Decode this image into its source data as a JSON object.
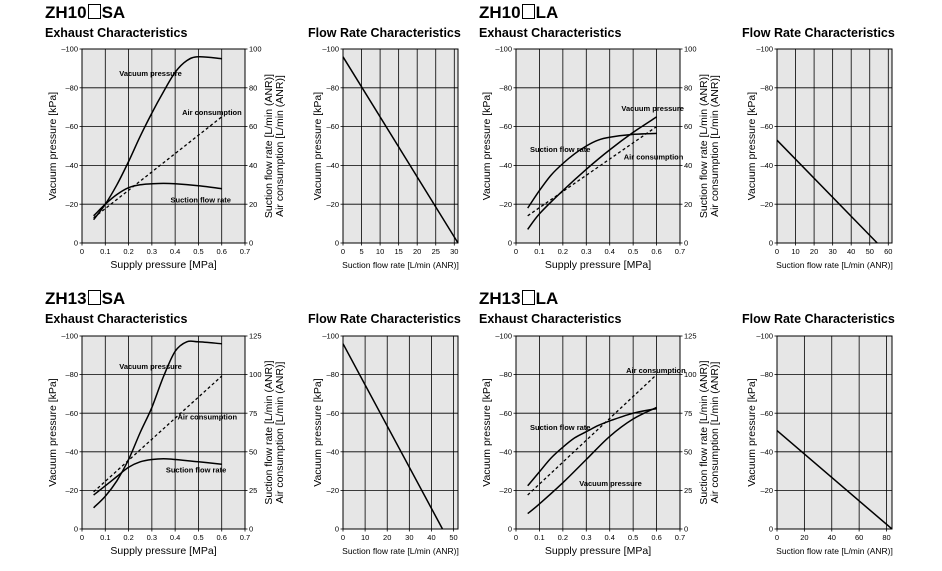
{
  "models": [
    {
      "prefix": "ZH10",
      "suffix": "SA"
    },
    {
      "prefix": "ZH10",
      "suffix": "LA"
    },
    {
      "prefix": "ZH13",
      "suffix": "SA"
    },
    {
      "prefix": "ZH13",
      "suffix": "LA"
    }
  ],
  "titles": {
    "exhaust": "Exhaust Characteristics",
    "flow": "Flow Rate Characteristics"
  },
  "chart_data": [
    {
      "id": "zh10sa-exhaust",
      "type": "line",
      "title": "Exhaust Characteristics",
      "xlabel": "Supply pressure [MPa]",
      "ylabel": "Vacuum pressure [kPa]",
      "y2label": [
        "Suction flow rate [L/min (ANR)]",
        "Air consumption [L/min (ANR)]"
      ],
      "xlim": [
        0,
        0.7
      ],
      "ylim": [
        0,
        -100
      ],
      "y2lim": [
        0,
        100
      ],
      "xticks": [
        0,
        0.1,
        0.2,
        0.3,
        0.4,
        0.5,
        0.6,
        0.7
      ],
      "xtick_labels": [
        "0",
        "0.1",
        "0.2",
        "0.3",
        "0.4",
        "0.5",
        "0.6",
        "0.7"
      ],
      "yticks": [
        0,
        -20,
        -40,
        -60,
        -80,
        -100
      ],
      "ytick_labels": [
        "0",
        "–20",
        "–40",
        "–60",
        "–80",
        "–100"
      ],
      "y2ticks": [
        0,
        20,
        40,
        60,
        80,
        100
      ],
      "y2tick_labels": [
        "0",
        "20",
        "40",
        "60",
        "80",
        "100"
      ],
      "grid": true,
      "series": [
        {
          "name": "Vacuum pressure",
          "axis": "left",
          "style": "solid",
          "x": [
            0.05,
            0.1,
            0.15,
            0.2,
            0.25,
            0.3,
            0.35,
            0.4,
            0.45,
            0.5,
            0.6
          ],
          "y": [
            -12,
            -20,
            -30,
            -42,
            -55,
            -67,
            -78,
            -88,
            -94,
            -96,
            -95
          ]
        },
        {
          "name": "Air consumption",
          "axis": "right",
          "style": "dashed",
          "x": [
            0.05,
            0.6
          ],
          "y": [
            13,
            65
          ]
        },
        {
          "name": "Suction flow rate",
          "axis": "right",
          "style": "solid",
          "x": [
            0.05,
            0.1,
            0.15,
            0.2,
            0.25,
            0.3,
            0.35,
            0.4,
            0.5,
            0.6
          ],
          "y": [
            14,
            20,
            25,
            28.5,
            30,
            30.5,
            30.7,
            30.5,
            29.5,
            28
          ]
        }
      ],
      "annotations": [
        {
          "text": "Vacuum pressure",
          "x": 0.16,
          "y": -86,
          "axis": "left"
        },
        {
          "text": "Air consumption",
          "x": 0.43,
          "y": 66,
          "axis": "right"
        },
        {
          "text": "Suction flow rate",
          "x": 0.38,
          "y": 21,
          "axis": "right"
        }
      ]
    },
    {
      "id": "zh10sa-flow",
      "type": "line",
      "title": "Flow Rate Characteristics",
      "xlabel": "Suction flow rate [L/min (ANR)]",
      "ylabel": "Vacuum pressure [kPa]",
      "xlim": [
        0,
        31
      ],
      "ylim": [
        0,
        -100
      ],
      "xticks": [
        0,
        5,
        10,
        15,
        20,
        25,
        30
      ],
      "xtick_labels": [
        "0",
        "5",
        "10",
        "15",
        "20",
        "25",
        "30"
      ],
      "yticks": [
        0,
        -20,
        -40,
        -60,
        -80,
        -100
      ],
      "ytick_labels": [
        "0",
        "–20",
        "–40",
        "–60",
        "–80",
        "–100"
      ],
      "grid": true,
      "series": [
        {
          "axis": "left",
          "style": "solid",
          "x": [
            0,
            31
          ],
          "y": [
            -96,
            0
          ]
        }
      ]
    },
    {
      "id": "zh10la-exhaust",
      "type": "line",
      "title": "Exhaust Characteristics",
      "xlabel": "Supply pressure [MPa]",
      "ylabel": "Vacuum pressure [kPa]",
      "y2label": [
        "Suction flow rate [L/min (ANR)]",
        "Air consumption [L/min (ANR)]"
      ],
      "xlim": [
        0,
        0.7
      ],
      "ylim": [
        0,
        -100
      ],
      "y2lim": [
        0,
        100
      ],
      "xticks": [
        0,
        0.1,
        0.2,
        0.3,
        0.4,
        0.5,
        0.6,
        0.7
      ],
      "xtick_labels": [
        "0",
        "0.1",
        "0.2",
        "0.3",
        "0.4",
        "0.5",
        "0.6",
        "0.7"
      ],
      "yticks": [
        0,
        -20,
        -40,
        -60,
        -80,
        -100
      ],
      "ytick_labels": [
        "0",
        "–20",
        "–40",
        "–60",
        "–80",
        "–100"
      ],
      "y2ticks": [
        0,
        20,
        40,
        60,
        80,
        100
      ],
      "y2tick_labels": [
        "0",
        "20",
        "40",
        "60",
        "80",
        "100"
      ],
      "grid": true,
      "series": [
        {
          "name": "Vacuum pressure",
          "axis": "left",
          "style": "solid",
          "x": [
            0.05,
            0.1,
            0.2,
            0.3,
            0.4,
            0.5,
            0.6
          ],
          "y": [
            -7,
            -15,
            -27,
            -38,
            -48,
            -57,
            -65
          ]
        },
        {
          "name": "Air consumption",
          "axis": "right",
          "style": "dashed",
          "x": [
            0.05,
            0.6
          ],
          "y": [
            14,
            60
          ]
        },
        {
          "name": "Suction flow rate",
          "axis": "right",
          "style": "solid",
          "x": [
            0.05,
            0.1,
            0.15,
            0.2,
            0.25,
            0.3,
            0.35,
            0.4,
            0.5,
            0.6
          ],
          "y": [
            18,
            27,
            35,
            41,
            46,
            50,
            53,
            54.5,
            56,
            56.5
          ]
        }
      ],
      "annotations": [
        {
          "text": "Vacuum pressure",
          "x": 0.45,
          "y": -68,
          "axis": "left"
        },
        {
          "text": "Suction flow rate",
          "x": 0.06,
          "y": 47,
          "axis": "right"
        },
        {
          "text": "Air consumption",
          "x": 0.46,
          "y": 43,
          "axis": "right"
        }
      ]
    },
    {
      "id": "zh10la-flow",
      "type": "line",
      "title": "Flow Rate Characteristics",
      "xlabel": "Suction flow rate [L/min (ANR)]",
      "ylabel": "Vacuum pressure [kPa]",
      "xlim": [
        0,
        62
      ],
      "ylim": [
        0,
        -100
      ],
      "xticks": [
        0,
        10,
        20,
        30,
        40,
        50,
        60
      ],
      "xtick_labels": [
        "0",
        "10",
        "20",
        "30",
        "40",
        "50",
        "60"
      ],
      "yticks": [
        0,
        -20,
        -40,
        -60,
        -80,
        -100
      ],
      "ytick_labels": [
        "0",
        "–20",
        "–40",
        "–60",
        "–80",
        "–100"
      ],
      "grid": true,
      "series": [
        {
          "axis": "left",
          "style": "solid",
          "x": [
            0,
            54
          ],
          "y": [
            -53,
            0
          ]
        }
      ]
    },
    {
      "id": "zh13sa-exhaust",
      "type": "line",
      "title": "Exhaust Characteristics",
      "xlabel": "Supply pressure [MPa]",
      "ylabel": "Vacuum pressure [kPa]",
      "y2label": [
        "Suction flow rate [L/min (ANR)]",
        "Air consumption [L/min (ANR)]"
      ],
      "xlim": [
        0,
        0.7
      ],
      "ylim": [
        0,
        -100
      ],
      "y2lim": [
        0,
        125
      ],
      "xticks": [
        0,
        0.1,
        0.2,
        0.3,
        0.4,
        0.5,
        0.6,
        0.7
      ],
      "xtick_labels": [
        "0",
        "0.1",
        "0.2",
        "0.3",
        "0.4",
        "0.5",
        "0.6",
        "0.7"
      ],
      "yticks": [
        0,
        -20,
        -40,
        -60,
        -80,
        -100
      ],
      "ytick_labels": [
        "0",
        "–20",
        "–40",
        "–60",
        "–80",
        "–100"
      ],
      "y2ticks": [
        0,
        25,
        50,
        75,
        100,
        125
      ],
      "y2tick_labels": [
        "0",
        "25",
        "50",
        "75",
        "100",
        "125"
      ],
      "grid": true,
      "series": [
        {
          "name": "Vacuum pressure",
          "axis": "left",
          "style": "solid",
          "x": [
            0.05,
            0.1,
            0.15,
            0.2,
            0.25,
            0.3,
            0.35,
            0.4,
            0.45,
            0.5,
            0.6
          ],
          "y": [
            -11,
            -17,
            -25,
            -36,
            -50,
            -63,
            -79,
            -92,
            -97,
            -97,
            -96
          ]
        },
        {
          "name": "Air consumption",
          "axis": "right",
          "style": "dashed",
          "x": [
            0.05,
            0.6
          ],
          "y": [
            24,
            99
          ]
        },
        {
          "name": "Suction flow rate",
          "axis": "right",
          "style": "solid",
          "x": [
            0.05,
            0.1,
            0.15,
            0.2,
            0.25,
            0.3,
            0.35,
            0.4,
            0.5,
            0.6
          ],
          "y": [
            22,
            28,
            34,
            40,
            43.5,
            45,
            45.5,
            45,
            43.5,
            42
          ]
        }
      ],
      "annotations": [
        {
          "text": "Vacuum pressure",
          "x": 0.16,
          "y": -83,
          "axis": "left"
        },
        {
          "text": "Air consumption",
          "x": 0.41,
          "y": 71,
          "axis": "right"
        },
        {
          "text": "Suction flow rate",
          "x": 0.36,
          "y": 36.5,
          "axis": "right"
        }
      ]
    },
    {
      "id": "zh13sa-flow",
      "type": "line",
      "title": "Flow Rate Characteristics",
      "xlabel": "Suction flow rate [L/min (ANR)]",
      "ylabel": "Vacuum pressure [kPa]",
      "xlim": [
        0,
        52
      ],
      "ylim": [
        0,
        -100
      ],
      "xticks": [
        0,
        10,
        20,
        30,
        40,
        50
      ],
      "xtick_labels": [
        "0",
        "10",
        "20",
        "30",
        "40",
        "50"
      ],
      "yticks": [
        0,
        -20,
        -40,
        -60,
        -80,
        -100
      ],
      "ytick_labels": [
        "0",
        "–20",
        "–40",
        "–60",
        "–80",
        "–100"
      ],
      "grid": true,
      "series": [
        {
          "axis": "left",
          "style": "solid",
          "x": [
            0,
            45
          ],
          "y": [
            -96,
            0
          ]
        }
      ]
    },
    {
      "id": "zh13la-exhaust",
      "type": "line",
      "title": "Exhaust Characteristics",
      "xlabel": "Supply pressure [MPa]",
      "ylabel": "Vacuum pressure [kPa]",
      "y2label": [
        "Suction flow rate [L/min (ANR)]",
        "Air consumption [L/min (ANR)]"
      ],
      "xlim": [
        0,
        0.7
      ],
      "ylim": [
        0,
        -100
      ],
      "y2lim": [
        0,
        125
      ],
      "xticks": [
        0,
        0.1,
        0.2,
        0.3,
        0.4,
        0.5,
        0.6,
        0.7
      ],
      "xtick_labels": [
        "0",
        "0.1",
        "0.2",
        "0.3",
        "0.4",
        "0.5",
        "0.6",
        "0.7"
      ],
      "yticks": [
        0,
        -20,
        -40,
        -60,
        -80,
        -100
      ],
      "ytick_labels": [
        "0",
        "–20",
        "–40",
        "–60",
        "–80",
        "–100"
      ],
      "y2ticks": [
        0,
        25,
        50,
        75,
        100,
        125
      ],
      "y2tick_labels": [
        "0",
        "25",
        "50",
        "75",
        "100",
        "125"
      ],
      "grid": true,
      "series": [
        {
          "name": "Vacuum pressure",
          "axis": "left",
          "style": "solid",
          "x": [
            0.05,
            0.1,
            0.2,
            0.3,
            0.4,
            0.5,
            0.6
          ],
          "y": [
            -8,
            -13,
            -24,
            -36,
            -48,
            -57,
            -63
          ]
        },
        {
          "name": "Air consumption",
          "axis": "right",
          "style": "dashed",
          "x": [
            0.05,
            0.6
          ],
          "y": [
            22,
            100
          ]
        },
        {
          "name": "Suction flow rate",
          "axis": "right",
          "style": "solid",
          "x": [
            0.05,
            0.1,
            0.15,
            0.2,
            0.25,
            0.3,
            0.35,
            0.4,
            0.5,
            0.6
          ],
          "y": [
            28,
            37,
            46,
            53,
            59,
            63,
            67,
            70,
            75,
            78
          ]
        }
      ],
      "annotations": [
        {
          "text": "Suction flow rate",
          "x": 0.06,
          "y": 64,
          "axis": "right"
        },
        {
          "text": "Air consumption",
          "x": 0.47,
          "y": 101,
          "axis": "right"
        },
        {
          "text": "Vacuum pressure",
          "x": 0.27,
          "y": 28,
          "axis": "right"
        }
      ]
    },
    {
      "id": "zh13la-flow",
      "type": "line",
      "title": "Flow Rate Characteristics",
      "xlabel": "Suction flow rate [L/min (ANR)]",
      "ylabel": "Vacuum pressure [kPa]",
      "xlim": [
        0,
        84
      ],
      "ylim": [
        0,
        -100
      ],
      "xticks": [
        0,
        20,
        40,
        60,
        80
      ],
      "xtick_labels": [
        "0",
        "20",
        "40",
        "60",
        "80"
      ],
      "yticks": [
        0,
        -20,
        -40,
        -60,
        -80,
        -100
      ],
      "ytick_labels": [
        "0",
        "–20",
        "–40",
        "–60",
        "–80",
        "–100"
      ],
      "grid": true,
      "series": [
        {
          "axis": "left",
          "style": "solid",
          "x": [
            0,
            84
          ],
          "y": [
            -51,
            0
          ]
        }
      ]
    }
  ]
}
